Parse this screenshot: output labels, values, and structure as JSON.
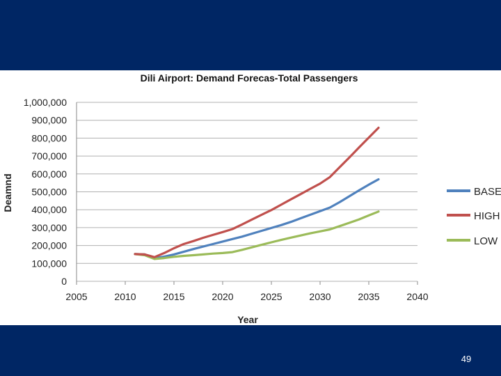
{
  "slide": {
    "number": "49"
  },
  "colors": {
    "band": "#002664",
    "BASE": "#4f81bd",
    "HIGH": "#c0504d",
    "LOW": "#9bbb59"
  },
  "chart_data": {
    "type": "line",
    "title": "Dili Airport:  Demand Forecas-Total Passengers",
    "xlabel": "Year",
    "ylabel": "Deamnd",
    "xlim": [
      2005,
      2040
    ],
    "ylim": [
      0,
      1000000
    ],
    "x_ticks": [
      "2005",
      "2010",
      "2015",
      "2020",
      "2025",
      "2030",
      "2035",
      "2040"
    ],
    "y_ticks": [
      "0",
      "100,000",
      "200,000",
      "300,000",
      "400,000",
      "500,000",
      "600,000",
      "700,000",
      "800,000",
      "900,000",
      "1,000,000"
    ],
    "grid": "horizontal",
    "legend_position": "right",
    "series": [
      {
        "name": "BASE",
        "color": "#4f81bd",
        "x": [
          2011,
          2012,
          2013,
          2014,
          2015,
          2016,
          2017,
          2018,
          2019,
          2020,
          2021,
          2022,
          2023,
          2024,
          2025,
          2026,
          2027,
          2028,
          2029,
          2030,
          2031,
          2032,
          2033,
          2034,
          2035,
          2036
        ],
        "values": [
          152000,
          150000,
          128000,
          138000,
          150000,
          165000,
          180000,
          194000,
          208000,
          222000,
          236000,
          250000,
          266000,
          282000,
          298000,
          314000,
          332000,
          352000,
          372000,
          392000,
          412000,
          442000,
          475000,
          508000,
          540000,
          570000
        ]
      },
      {
        "name": "HIGH",
        "color": "#c0504d",
        "x": [
          2011,
          2012,
          2013,
          2014,
          2015,
          2016,
          2017,
          2018,
          2019,
          2020,
          2021,
          2022,
          2023,
          2024,
          2025,
          2026,
          2027,
          2028,
          2029,
          2030,
          2031,
          2032,
          2033,
          2034,
          2035,
          2036
        ],
        "values": [
          152000,
          150000,
          135000,
          158000,
          185000,
          208000,
          225000,
          243000,
          259000,
          275000,
          292000,
          318000,
          345000,
          372000,
          398000,
          428000,
          458000,
          487000,
          517000,
          546000,
          582000,
          637000,
          692000,
          748000,
          803000,
          858000
        ]
      },
      {
        "name": "LOW",
        "color": "#9bbb59",
        "x": [
          2011,
          2012,
          2013,
          2014,
          2015,
          2016,
          2017,
          2018,
          2019,
          2020,
          2021,
          2022,
          2023,
          2024,
          2025,
          2026,
          2027,
          2028,
          2029,
          2030,
          2031,
          2032,
          2033,
          2034,
          2035,
          2036
        ],
        "values": [
          152000,
          146000,
          125000,
          130000,
          137000,
          142000,
          146000,
          150000,
          155000,
          158000,
          163000,
          176000,
          190000,
          204000,
          218000,
          231000,
          244000,
          256000,
          268000,
          279000,
          290000,
          308000,
          327000,
          346000,
          368000,
          390000
        ]
      }
    ]
  }
}
